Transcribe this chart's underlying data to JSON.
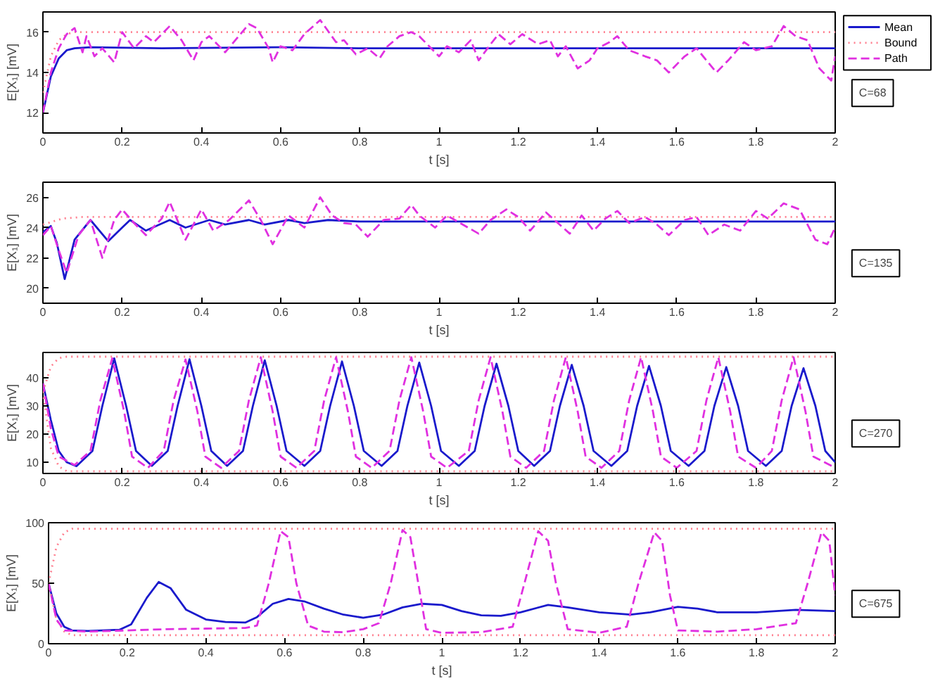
{
  "chart_data": [
    {
      "type": "line",
      "xlabel": "t [s]",
      "ylabel": "E[X₁] [mV]",
      "xlim": [
        0,
        2
      ],
      "xticks": [
        0,
        0.2,
        0.4,
        0.6,
        0.8,
        1,
        1.2,
        1.4,
        1.6,
        1.8,
        2
      ],
      "ylim": [
        11,
        17
      ],
      "yticks": [
        12,
        14,
        16
      ],
      "legend": "right",
      "annotations": [
        "C=68"
      ],
      "series": [
        {
          "name": "Mean",
          "color": "#1a1acc",
          "line_style": "solid",
          "x": [
            0,
            0.02,
            0.04,
            0.06,
            0.08,
            0.12,
            0.3,
            0.6,
            0.8,
            1.0,
            1.2,
            1.5,
            1.8,
            2.0
          ],
          "values": [
            12,
            13.8,
            14.7,
            15.1,
            15.2,
            15.25,
            15.2,
            15.25,
            15.2,
            15.2,
            15.2,
            15.2,
            15.2,
            15.2
          ]
        },
        {
          "name": "Bound",
          "color": "#ff7f8f",
          "line_style": "dotted",
          "x": [
            0,
            0.02,
            0.04,
            0.06,
            0.08,
            0.1,
            2
          ],
          "values": [
            13,
            14.8,
            15.6,
            15.9,
            16,
            16,
            16
          ]
        },
        {
          "name": "Path",
          "color": "#e030e0",
          "line_style": "dashed",
          "x": [
            0,
            0.02,
            0.04,
            0.06,
            0.08,
            0.1,
            0.11,
            0.13,
            0.15,
            0.18,
            0.2,
            0.23,
            0.26,
            0.28,
            0.32,
            0.35,
            0.38,
            0.4,
            0.42,
            0.46,
            0.52,
            0.54,
            0.57,
            0.58,
            0.6,
            0.63,
            0.66,
            0.7,
            0.74,
            0.76,
            0.79,
            0.82,
            0.85,
            0.87,
            0.9,
            0.93,
            0.95,
            1.0,
            1.02,
            1.05,
            1.08,
            1.1,
            1.13,
            1.15,
            1.18,
            1.21,
            1.25,
            1.28,
            1.3,
            1.32,
            1.35,
            1.38,
            1.4,
            1.43,
            1.45,
            1.48,
            1.52,
            1.55,
            1.58,
            1.62,
            1.65,
            1.7,
            1.73,
            1.77,
            1.8,
            1.84,
            1.87,
            1.9,
            1.93,
            1.96,
            1.99,
            2.0
          ],
          "values": [
            12,
            14,
            15.2,
            15.9,
            16.2,
            15,
            15.8,
            14.8,
            15.2,
            14.5,
            16,
            15.2,
            15.8,
            15.5,
            16.3,
            15.6,
            14.6,
            15.5,
            15.8,
            15,
            16.4,
            16.2,
            15.2,
            14.5,
            15.3,
            15.1,
            15.9,
            16.6,
            15.5,
            15.6,
            14.9,
            15.2,
            14.7,
            15.3,
            15.8,
            16,
            15.8,
            14.8,
            15.3,
            15,
            15.6,
            14.6,
            15.4,
            15.9,
            15.4,
            15.9,
            15.4,
            15.6,
            14.8,
            15.3,
            14.2,
            14.6,
            15.2,
            15.5,
            15.8,
            15.1,
            14.8,
            14.6,
            14,
            14.8,
            15.2,
            14,
            14.6,
            15.5,
            15.1,
            15.3,
            16.3,
            15.8,
            15.6,
            14.2,
            13.6,
            14.8
          ]
        }
      ]
    },
    {
      "type": "line",
      "xlabel": "t [s]",
      "ylabel": "E[X₁] [mV]",
      "xlim": [
        0,
        2
      ],
      "xticks": [
        0,
        0.2,
        0.4,
        0.6,
        0.8,
        1,
        1.2,
        1.4,
        1.6,
        1.8,
        2
      ],
      "ylim": [
        19,
        27
      ],
      "yticks": [
        20,
        22,
        24,
        26
      ],
      "annotations": [
        "C=135"
      ],
      "series": [
        {
          "color": "#1a1acc",
          "line_style": "solid",
          "x": [
            0,
            0.02,
            0.035,
            0.055,
            0.08,
            0.12,
            0.165,
            0.2,
            0.22,
            0.26,
            0.32,
            0.36,
            0.42,
            0.46,
            0.52,
            0.56,
            0.62,
            0.66,
            0.72,
            0.8,
            1.0,
            1.5,
            2.0
          ],
          "values": [
            23.7,
            24.1,
            23,
            20.6,
            23.2,
            24.5,
            23.1,
            24,
            24.5,
            23.8,
            24.5,
            24,
            24.5,
            24.2,
            24.5,
            24.2,
            24.5,
            24.3,
            24.5,
            24.4,
            24.4,
            24.4,
            24.4
          ]
        },
        {
          "color": "#ff7f8f",
          "line_style": "dotted",
          "x": [
            0,
            0.05,
            0.1,
            2
          ],
          "values": [
            24.2,
            24.6,
            24.7,
            24.7
          ]
        },
        {
          "color": "#e030e0",
          "line_style": "dashed",
          "x": [
            0,
            0.02,
            0.04,
            0.06,
            0.09,
            0.12,
            0.15,
            0.18,
            0.2,
            0.23,
            0.26,
            0.3,
            0.32,
            0.36,
            0.4,
            0.43,
            0.47,
            0.52,
            0.55,
            0.58,
            0.62,
            0.66,
            0.7,
            0.73,
            0.76,
            0.79,
            0.82,
            0.86,
            0.9,
            0.93,
            0.95,
            0.99,
            1.02,
            1.06,
            1.1,
            1.13,
            1.17,
            1.2,
            1.23,
            1.27,
            1.3,
            1.33,
            1.36,
            1.39,
            1.42,
            1.45,
            1.48,
            1.52,
            1.55,
            1.58,
            1.62,
            1.65,
            1.68,
            1.72,
            1.76,
            1.8,
            1.83,
            1.87,
            1.91,
            1.95,
            1.98,
            2.0
          ],
          "values": [
            23.5,
            24.1,
            22.5,
            21,
            23.5,
            24.5,
            22,
            24.5,
            25.2,
            24.3,
            23.5,
            24.6,
            25.7,
            23.2,
            25.2,
            23.8,
            24.5,
            25.8,
            24.5,
            22.9,
            24.8,
            24,
            26,
            24.8,
            24.3,
            24.2,
            23.4,
            24.5,
            24.6,
            25.5,
            24.8,
            24,
            24.8,
            24.2,
            23.6,
            24.5,
            25.2,
            24.7,
            23.8,
            25,
            24.3,
            23.6,
            24.8,
            23.8,
            24.6,
            25.1,
            24.3,
            24.7,
            24.2,
            23.5,
            24.5,
            24.7,
            23.5,
            24.2,
            23.8,
            25.1,
            24.6,
            25.6,
            25.2,
            23.2,
            22.9,
            24
          ]
        }
      ]
    },
    {
      "type": "line",
      "xlabel": "t [s]",
      "ylabel": "E[X₁] [mV]",
      "xlim": [
        0,
        2
      ],
      "xticks": [
        0,
        0.2,
        0.4,
        0.6,
        0.8,
        1,
        1.2,
        1.4,
        1.6,
        1.8,
        2
      ],
      "ylim": [
        6,
        49
      ],
      "yticks": [
        10,
        20,
        30,
        40
      ],
      "annotations": [
        "C=270"
      ],
      "series": [
        {
          "color": "#1a1acc",
          "line_style": "solid",
          "x": [
            0,
            0.02,
            0.04,
            0.06,
            0.085,
            0.125,
            0.15,
            0.18,
            0.21,
            0.235,
            0.275,
            0.315,
            0.34,
            0.37,
            0.4,
            0.425,
            0.465,
            0.505,
            0.53,
            0.56,
            0.59,
            0.615,
            0.66,
            0.7,
            0.725,
            0.755,
            0.785,
            0.81,
            0.855,
            0.895,
            0.92,
            0.95,
            0.98,
            1.005,
            1.05,
            1.09,
            1.115,
            1.145,
            1.175,
            1.2,
            1.24,
            1.28,
            1.305,
            1.335,
            1.365,
            1.39,
            1.435,
            1.475,
            1.5,
            1.53,
            1.56,
            1.585,
            1.63,
            1.67,
            1.695,
            1.725,
            1.755,
            1.78,
            1.825,
            1.865,
            1.89,
            1.92,
            1.95,
            1.975,
            2.0
          ],
          "values": [
            38,
            25,
            14,
            10,
            8.6,
            14,
            30,
            46.9,
            30,
            14,
            8.7,
            14,
            30,
            46.6,
            30,
            14,
            8.7,
            14,
            30,
            46.2,
            30,
            14,
            8.7,
            14,
            30,
            45.8,
            30,
            14,
            8.7,
            14,
            30,
            45.4,
            30,
            14,
            8.7,
            14,
            30,
            45,
            30,
            14,
            8.7,
            14,
            30,
            44.6,
            30,
            14,
            8.7,
            14,
            30,
            44.2,
            30,
            14,
            8.7,
            14,
            30,
            43.8,
            30,
            14,
            8.7,
            14,
            30,
            43.4,
            30,
            14,
            10
          ]
        },
        {
          "color": "#ff7f8f",
          "line_style": "dotted",
          "x": [
            0,
            0.02,
            0.04,
            0.06,
            2,
            null,
            0,
            0.02,
            0.04,
            0.06,
            2
          ],
          "values": [
            35,
            44,
            47,
            47.5,
            47.5,
            null,
            35,
            15,
            8.5,
            6.8,
            6.8
          ]
        },
        {
          "color": "#e030e0",
          "line_style": "dashed",
          "x": [
            0,
            0.02,
            0.04,
            0.08,
            0.12,
            0.145,
            0.175,
            0.205,
            0.225,
            0.265,
            0.305,
            0.33,
            0.36,
            0.39,
            0.41,
            0.45,
            0.495,
            0.52,
            0.55,
            0.58,
            0.6,
            0.64,
            0.685,
            0.71,
            0.74,
            0.77,
            0.79,
            0.83,
            0.875,
            0.9,
            0.93,
            0.96,
            0.98,
            1.02,
            1.075,
            1.1,
            1.13,
            1.16,
            1.18,
            1.22,
            1.265,
            1.29,
            1.32,
            1.35,
            1.37,
            1.41,
            1.455,
            1.48,
            1.51,
            1.54,
            1.56,
            1.6,
            1.65,
            1.675,
            1.705,
            1.735,
            1.755,
            1.8,
            1.84,
            1.865,
            1.895,
            1.925,
            1.945,
            2.0
          ],
          "values": [
            38,
            22,
            12,
            9,
            14,
            32,
            46.9,
            28,
            12,
            8,
            14,
            32,
            46.5,
            28,
            12,
            8,
            14,
            32,
            47.3,
            28,
            12,
            8,
            14,
            32,
            47.3,
            28,
            12,
            8,
            14,
            32,
            47.3,
            28,
            12,
            8,
            14,
            32,
            47.3,
            28,
            12,
            8,
            14,
            32,
            47.3,
            28,
            12,
            8,
            14,
            32,
            47.3,
            28,
            12,
            8,
            14,
            32,
            47.3,
            28,
            12,
            8,
            14,
            32,
            47.3,
            28,
            12,
            8
          ]
        }
      ]
    },
    {
      "type": "line",
      "xlabel": "t [s]",
      "ylabel": "E[X₁] [mV]",
      "xlim": [
        0,
        2
      ],
      "xticks": [
        0,
        0.2,
        0.4,
        0.6,
        0.8,
        1,
        1.2,
        1.4,
        1.6,
        1.8,
        2
      ],
      "ylim": [
        0,
        100
      ],
      "yticks": [
        0,
        50,
        100
      ],
      "annotations": [
        "C=675"
      ],
      "series": [
        {
          "color": "#1a1acc",
          "line_style": "solid",
          "x": [
            0,
            0.02,
            0.04,
            0.06,
            0.1,
            0.18,
            0.21,
            0.25,
            0.28,
            0.31,
            0.35,
            0.4,
            0.45,
            0.5,
            0.53,
            0.57,
            0.61,
            0.65,
            0.7,
            0.75,
            0.8,
            0.85,
            0.9,
            0.95,
            1.0,
            1.05,
            1.1,
            1.15,
            1.2,
            1.27,
            1.32,
            1.4,
            1.48,
            1.53,
            1.6,
            1.65,
            1.7,
            1.8,
            1.9,
            2.0
          ],
          "values": [
            50,
            25,
            14,
            11,
            10.5,
            11.5,
            16,
            38,
            51,
            46,
            28,
            20,
            18,
            17.5,
            22,
            33,
            37,
            35,
            29,
            24,
            21.5,
            24,
            30,
            33,
            32,
            27,
            23.5,
            23,
            26,
            32,
            30,
            26,
            24,
            26,
            30.5,
            29,
            26,
            26,
            28,
            27
          ]
        },
        {
          "color": "#ff7f8f",
          "line_style": "dotted",
          "x": [
            0,
            0.02,
            0.04,
            0.06,
            2,
            null,
            0,
            0.02,
            0.04,
            0.06,
            2
          ],
          "values": [
            50,
            80,
            92,
            95,
            95,
            null,
            50,
            20,
            10,
            7,
            7
          ]
        },
        {
          "color": "#e030e0",
          "line_style": "dashed",
          "x": [
            0,
            0.02,
            0.04,
            0.1,
            0.2,
            0.3,
            0.4,
            0.5,
            0.53,
            0.56,
            0.59,
            0.61,
            0.63,
            0.66,
            0.7,
            0.75,
            0.8,
            0.84,
            0.87,
            0.9,
            0.92,
            0.94,
            0.96,
            1.0,
            1.1,
            1.18,
            1.21,
            1.245,
            1.27,
            1.29,
            1.32,
            1.4,
            1.47,
            1.5,
            1.54,
            1.56,
            1.58,
            1.6,
            1.7,
            1.8,
            1.9,
            1.93,
            1.965,
            1.985,
            2.0
          ],
          "values": [
            50,
            20,
            11,
            10,
            11,
            12,
            12.5,
            13,
            15,
            50,
            93,
            88,
            50,
            15,
            10,
            9.5,
            12,
            17,
            50,
            94,
            88,
            50,
            12,
            9,
            9.5,
            14,
            50,
            93,
            85,
            50,
            12,
            9,
            14,
            50,
            92,
            85,
            40,
            11,
            10,
            12,
            17,
            50,
            92,
            85,
            40
          ]
        }
      ]
    }
  ]
}
